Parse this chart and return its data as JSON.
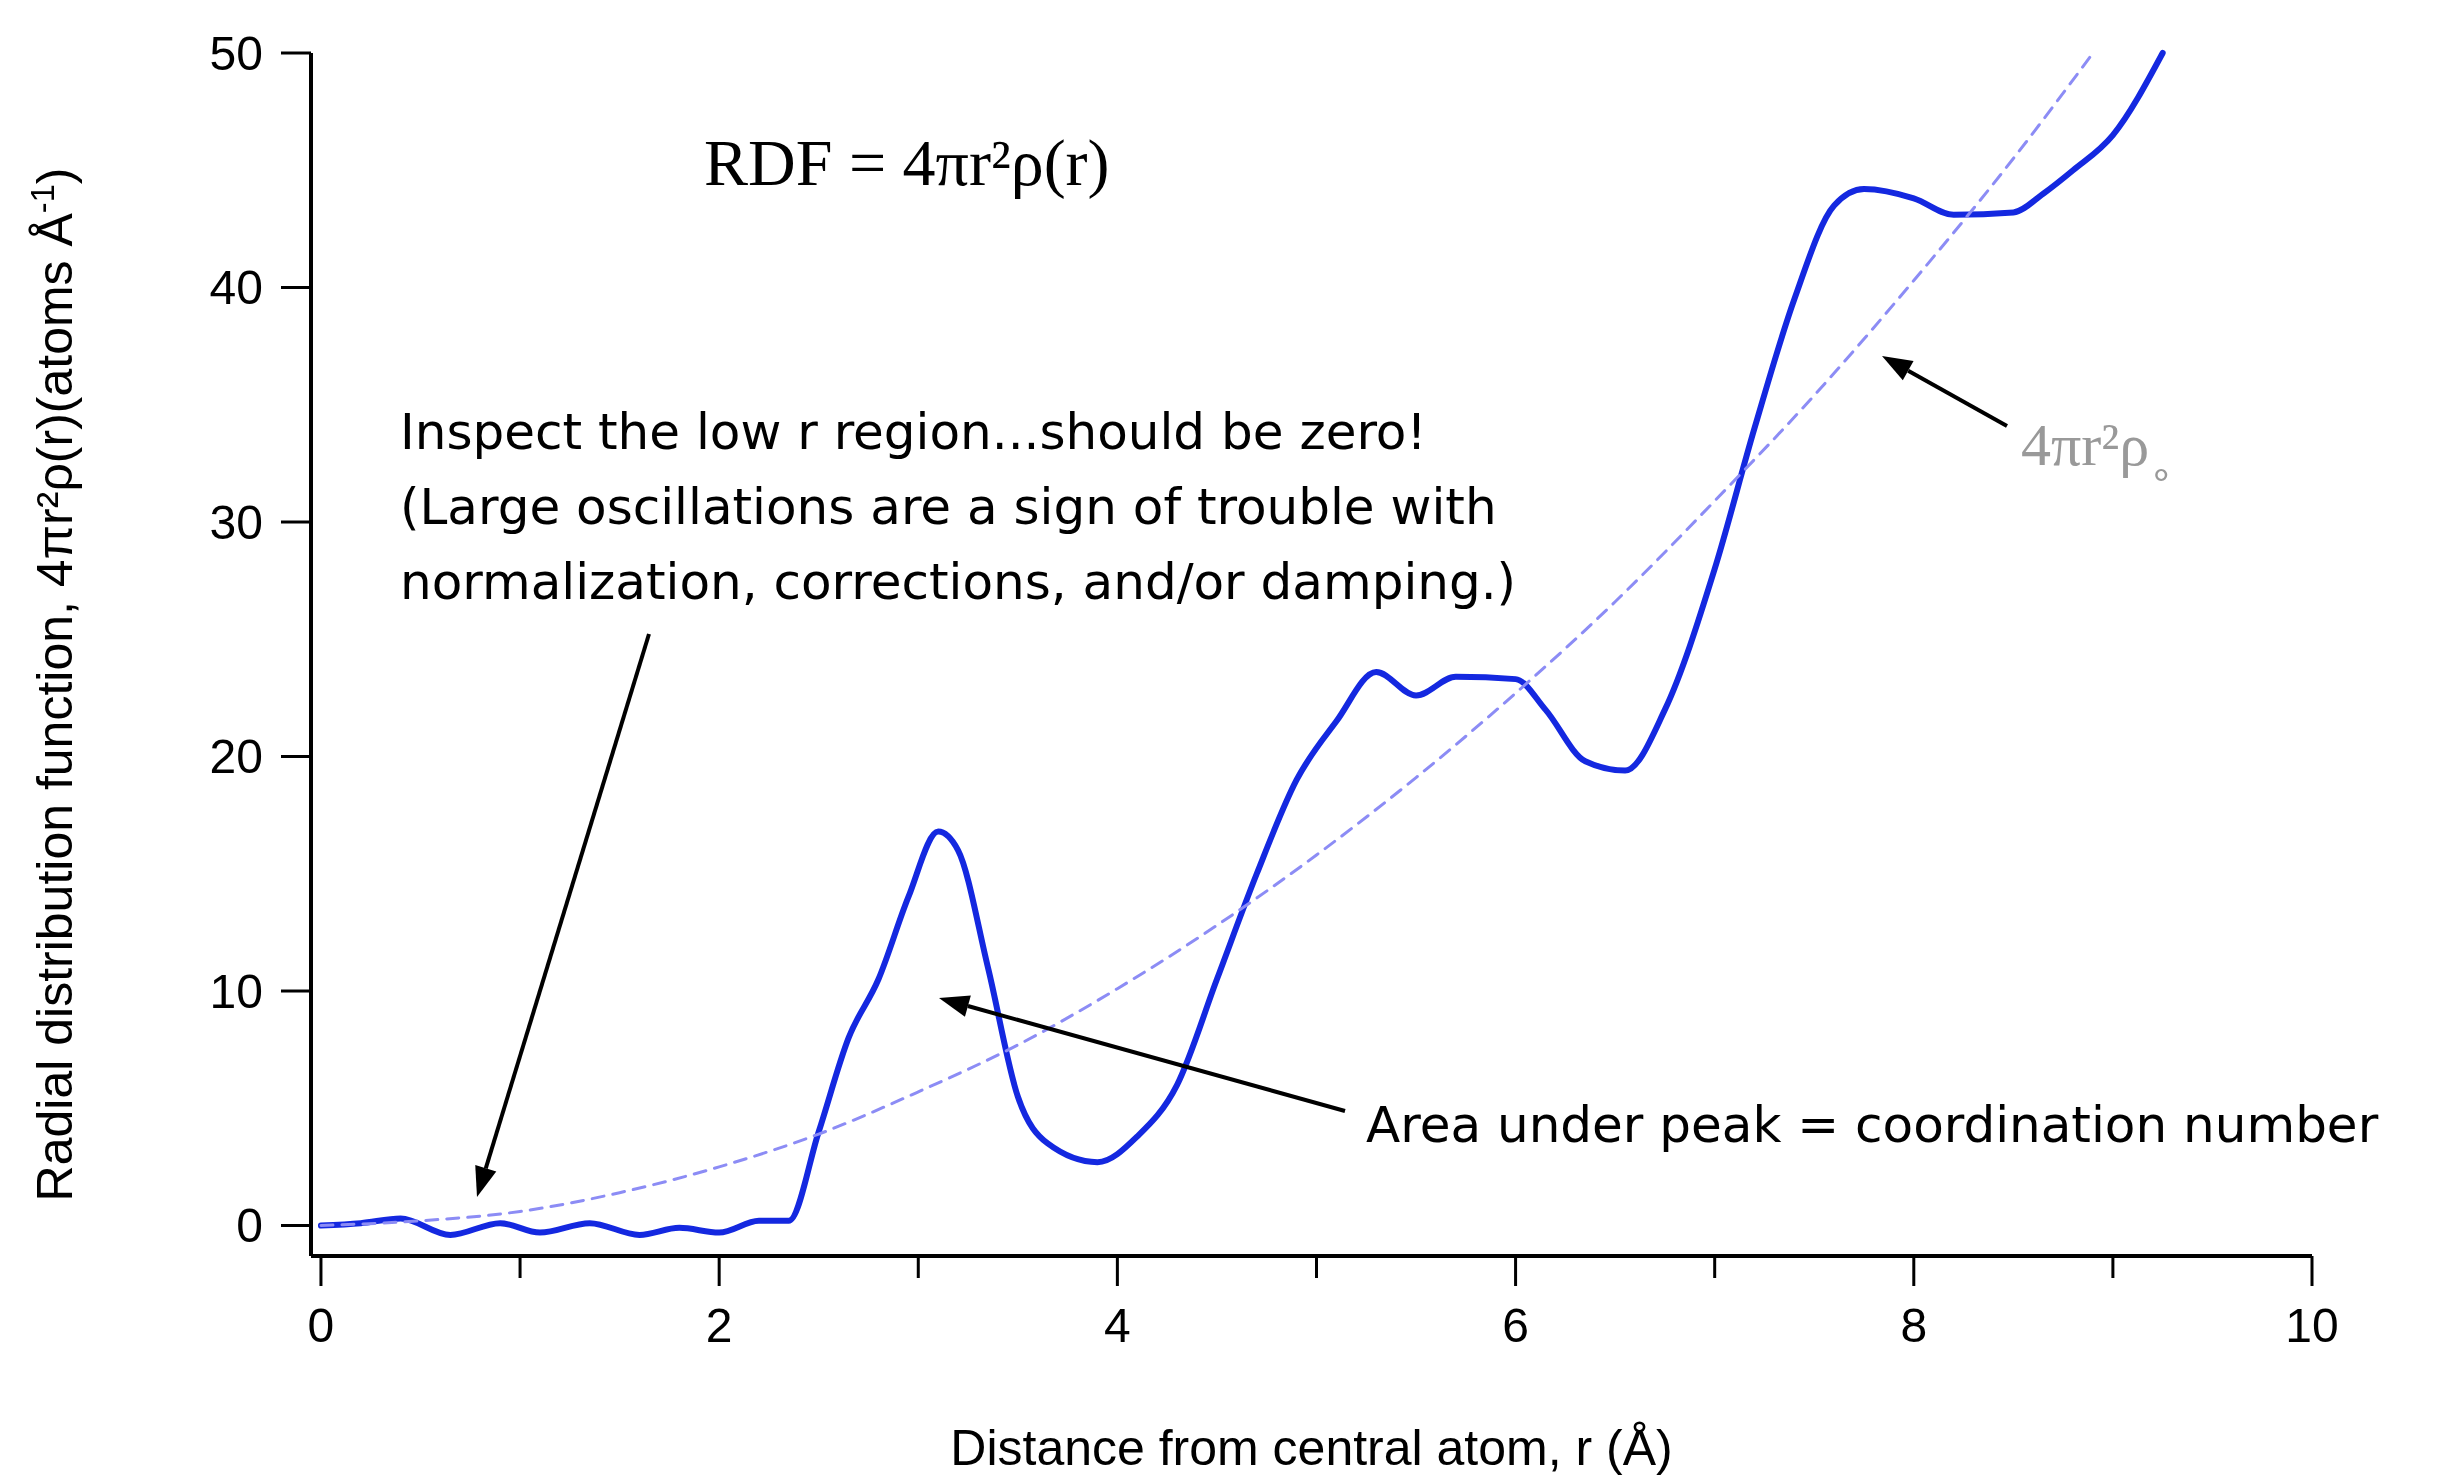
{
  "chart_data": {
    "type": "line",
    "xlabel": "Distance from central atom, r (Å)",
    "ylabel": "Radial distribution function, 4πr²ρ(r)(atoms Å$^{-1}$)",
    "xlim": [
      -0.05,
      10
    ],
    "ylim": [
      -1.3,
      50
    ],
    "xticks": [
      0,
      2,
      4,
      6,
      8,
      10
    ],
    "yticks": [
      0,
      10,
      20,
      30,
      40,
      50
    ],
    "grid": false,
    "marker": "none",
    "series": [
      {
        "color": "#1428e0",
        "line_style": "solid",
        "x": [
          0,
          0.2,
          0.4,
          0.65,
          0.9,
          1.1,
          1.35,
          1.6,
          1.8,
          2.0,
          2.2,
          2.35,
          2.5,
          2.65,
          2.8,
          2.95,
          3.1,
          3.2,
          3.35,
          3.5,
          3.65,
          3.9,
          4.1,
          4.3,
          4.5,
          4.7,
          4.9,
          5.1,
          5.3,
          5.5,
          5.7,
          6.0,
          6.15,
          6.35,
          6.55,
          6.75,
          7.0,
          7.2,
          7.4,
          7.6,
          7.75,
          8.0,
          8.2,
          8.5,
          8.65,
          8.8,
          9.0,
          9.25
        ],
        "values": [
          0,
          0.1,
          0.3,
          -0.4,
          0.1,
          -0.3,
          0.1,
          -0.4,
          -0.1,
          -0.3,
          0.2,
          0.2,
          4,
          8,
          10.5,
          14,
          16.8,
          16,
          11,
          5.5,
          3.5,
          2.7,
          3.8,
          6,
          10.5,
          15,
          19,
          21.5,
          23.6,
          22.6,
          23.4,
          23.3,
          22,
          19.8,
          19.4,
          22,
          28,
          34,
          39.5,
          43.5,
          44.2,
          43.8,
          43.1,
          43.2,
          44,
          45,
          46.5,
          50
        ]
      },
      {
        "color": "#8c8cf5",
        "line_style": "dashed",
        "x": [
          0,
          0.5,
          1,
          1.5,
          2,
          2.5,
          3,
          3.5,
          4,
          4.5,
          5,
          5.5,
          6,
          6.5,
          7,
          7.5,
          8,
          8.5,
          8.9
        ],
        "values": [
          0,
          0.2,
          0.6,
          1.4,
          2.5,
          3.9,
          5.7,
          7.7,
          10.1,
          12.8,
          15.8,
          19.1,
          22.7,
          26.6,
          30.9,
          35.4,
          40.3,
          45.5,
          50
        ]
      }
    ],
    "annotations": [
      "RDF = 4πr²ρ(r)",
      "Inspect the low r region...should be zero!\n(Large oscillations are a sign of trouble with\nnormalization, corrections, and/or damping.)",
      "Area under peak = coordination number",
      "4πr²ρ$_{∘}$"
    ]
  }
}
